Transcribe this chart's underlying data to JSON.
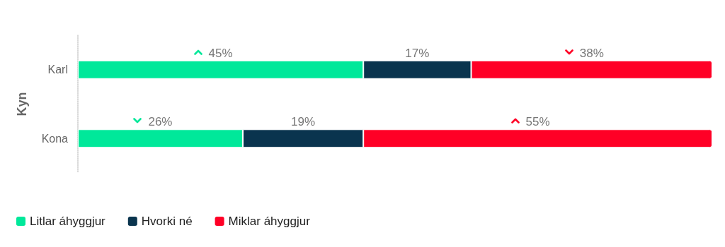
{
  "chart_data": {
    "type": "bar",
    "orientation": "horizontal",
    "stacked": true,
    "ylabel": "Kyn",
    "categories": [
      "Karl",
      "Kona"
    ],
    "tick_labels": "y",
    "grid": false,
    "legend": "bottom left",
    "series": [
      {
        "name": "Litlar áhyggjur",
        "color": "#00e89a",
        "values": [
          45,
          26
        ],
        "value_labels": [
          "45%",
          "26%"
        ]
      },
      {
        "name": "Hvorki né",
        "color": "#0a344e",
        "values": [
          17,
          19
        ],
        "value_labels": [
          "17%",
          "19%"
        ]
      },
      {
        "name": "Miklar áhyggjur",
        "color": "#ff0026",
        "values": [
          38,
          55
        ],
        "value_labels": [
          "38%",
          "55%"
        ]
      }
    ]
  }
}
